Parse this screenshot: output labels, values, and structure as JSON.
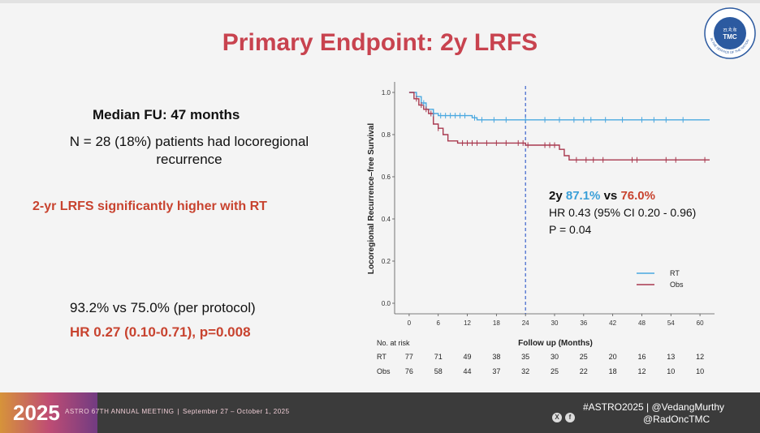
{
  "slide": {
    "title": "Primary Endpoint: 2y LRFS",
    "median_fu": "Median FU: 47 months",
    "n_recurrence_l1": "N = 28 (18%) patients had locoregional",
    "n_recurrence_l2": "recurrence",
    "lrfs_statement": "2-yr LRFS significantly higher with RT",
    "per_protocol": "93.2% vs 75.0% (per protocol)",
    "hr_per_protocol": "HR 0.27 (0.10-0.71), p=0.008"
  },
  "logo": {
    "text_top": "टा.मे.के",
    "text_main": "TMC",
    "ring_text": "IN THE SERVICE OF THE NATION"
  },
  "chart_data": {
    "type": "line",
    "subtype": "kaplan-meier",
    "xlabel": "Follow up (Months)",
    "ylabel": "Locoregional Recurrence–free Survival",
    "xlim": [
      -3,
      63
    ],
    "ylim": [
      -0.05,
      1.05
    ],
    "xticks": [
      0,
      6,
      12,
      18,
      24,
      30,
      36,
      42,
      48,
      54,
      60
    ],
    "yticks": [
      0.0,
      0.2,
      0.4,
      0.6,
      0.8,
      1.0
    ],
    "ytick_labels": [
      "0.0",
      "0.2",
      "0.4",
      "0.6",
      "0.8",
      "1.0"
    ],
    "reference_line_x": 24,
    "series": [
      {
        "name": "RT",
        "color": "#4aa8e0",
        "steps": [
          [
            0,
            1.0
          ],
          [
            1.5,
            0.98
          ],
          [
            2.5,
            0.95
          ],
          [
            3.5,
            0.92
          ],
          [
            5,
            0.9
          ],
          [
            6,
            0.89
          ],
          [
            13,
            0.88
          ],
          [
            14,
            0.87
          ],
          [
            62,
            0.87
          ]
        ],
        "censor": [
          3,
          5,
          6.5,
          7.5,
          8.5,
          9.5,
          10.5,
          11.5,
          13.5,
          15,
          17.5,
          20,
          24,
          28,
          31,
          34,
          36,
          37.5,
          40.5,
          44,
          48,
          50.5,
          53,
          56.5
        ]
      },
      {
        "name": "Obs",
        "color": "#a8384e",
        "steps": [
          [
            0,
            1.0
          ],
          [
            1,
            0.97
          ],
          [
            2,
            0.94
          ],
          [
            3,
            0.92
          ],
          [
            4,
            0.9
          ],
          [
            5,
            0.85
          ],
          [
            6,
            0.83
          ],
          [
            7,
            0.8
          ],
          [
            8,
            0.77
          ],
          [
            10,
            0.76
          ],
          [
            24,
            0.75
          ],
          [
            31,
            0.73
          ],
          [
            32,
            0.7
          ],
          [
            33,
            0.68
          ],
          [
            62,
            0.68
          ]
        ],
        "censor": [
          1.5,
          2.5,
          3.5,
          4.5,
          6,
          11,
          12,
          13,
          14,
          16,
          18,
          20,
          22.5,
          23.5,
          24.5,
          28,
          29,
          30,
          34.5,
          36.5,
          38,
          40,
          46,
          47,
          53,
          55,
          61
        ]
      }
    ],
    "legend": [
      {
        "label": "RT",
        "color": "#4aa8e0"
      },
      {
        "label": "Obs",
        "color": "#a8384e"
      }
    ],
    "legend_position": "bottom-right",
    "annotation": {
      "prefix": "2y",
      "rt_value": "87.1%",
      "vs": "vs",
      "obs_value": "76.0%",
      "hr": "HR 0.43 (95% CI 0.20 - 0.96)",
      "p": "P = 0.04"
    },
    "risk_table": {
      "header": "No. at risk",
      "rows": [
        {
          "label": "RT",
          "values": [
            "77",
            "71",
            "49",
            "38",
            "35",
            "30",
            "25",
            "20",
            "16",
            "13",
            "12"
          ]
        },
        {
          "label": "Obs",
          "values": [
            "76",
            "58",
            "44",
            "37",
            "32",
            "25",
            "22",
            "18",
            "12",
            "10",
            "10"
          ]
        }
      ]
    }
  },
  "footer": {
    "year": "2025",
    "meeting": "ASTRO 67TH ANNUAL MEETING",
    "separator": "|",
    "dates": "September 27 – October 1, 2025",
    "x_icon": "X",
    "fb_icon": "f",
    "hashtag_line": "#ASTRO2025  | @VedangMurthy",
    "handle2": "@RadOncTMC"
  }
}
